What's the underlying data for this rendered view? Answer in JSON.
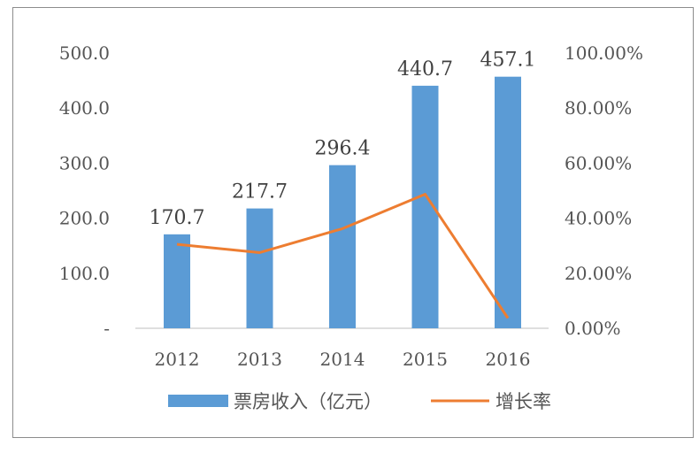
{
  "chart_data": {
    "type": "bar+line",
    "categories": [
      "2012",
      "2013",
      "2014",
      "2015",
      "2016"
    ],
    "series": [
      {
        "name": "票房收入（亿元）",
        "type": "bar",
        "axis": "left",
        "values": [
          170.7,
          217.7,
          296.4,
          440.7,
          457.1
        ],
        "labels": [
          "170.7",
          "217.7",
          "296.4",
          "440.7",
          "457.1"
        ],
        "color": "#5b9bd5"
      },
      {
        "name": "增长率",
        "type": "line",
        "axis": "right",
        "values": [
          30.5,
          27.5,
          36.2,
          48.7,
          3.7
        ],
        "color": "#ed7d31"
      }
    ],
    "y_left": {
      "ylim": [
        0,
        500
      ],
      "ticks": [
        0,
        100,
        200,
        300,
        400,
        500
      ],
      "tick_labels": [
        "-",
        "100.0",
        "200.0",
        "300.0",
        "400.0",
        "500.0"
      ]
    },
    "y_right": {
      "ylim": [
        0,
        100
      ],
      "ticks": [
        0,
        20,
        40,
        60,
        80,
        100
      ],
      "tick_labels": [
        "0.00%",
        "20.00%",
        "40.00%",
        "60.00%",
        "80.00%",
        "100.00%"
      ]
    },
    "grid": false,
    "legend_position": "bottom"
  }
}
